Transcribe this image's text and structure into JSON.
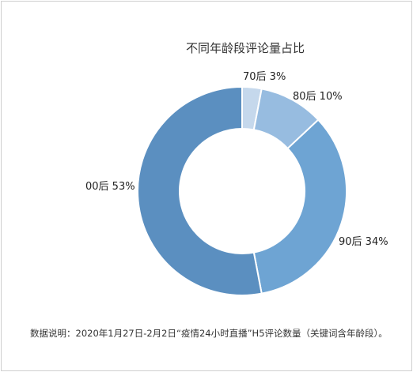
{
  "chart_data": {
    "type": "pie",
    "style": "donut",
    "title": "不同年龄段评论量占比",
    "categories": [
      "70后",
      "80后",
      "90后",
      "00后"
    ],
    "values": [
      3,
      10,
      34,
      53
    ],
    "value_labels": [
      "3%",
      "10%",
      "34%",
      "53%"
    ],
    "colors": [
      "#c5d8ec",
      "#97bce0",
      "#6ea4d3",
      "#5b8fc0"
    ],
    "legend": "none",
    "label_placement": "outside"
  },
  "footnote": "数据说明：2020年1月27日-2月2日“疫情24小时直播”H5评论数量（关键词含年龄段）。"
}
